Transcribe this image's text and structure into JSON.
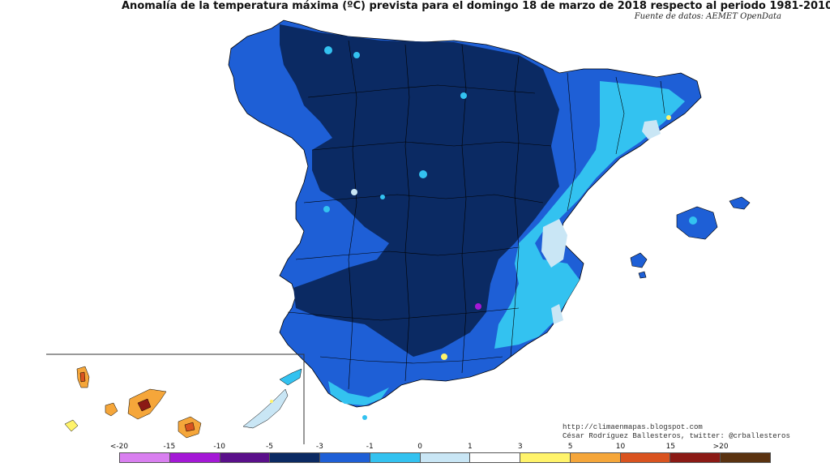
{
  "title": "Anomalía de la temperatura máxima (ºC) prevista para el domingo 18 de marzo de 2018 respecto al periodo 1981-2010",
  "source": "Fuente de datos: AEMET OpenData",
  "credits": {
    "url": "http://climaenmapas.blogspot.com",
    "author": "César Rodríguez Ballesteros, twitter: @crballesteros"
  },
  "legend": {
    "ticks": [
      "<-20",
      "-15",
      "-10",
      "-5",
      "-3",
      "-1",
      "0",
      "1",
      "3",
      "5",
      "10",
      "15",
      ">20"
    ],
    "colors": [
      "#d97ff0",
      "#a418d6",
      "#5a0f8a",
      "#0b2a63",
      "#1e5fd6",
      "#33c2f0",
      "#c9e6f5",
      "#ffffff",
      "#fff36a",
      "#f5a63a",
      "#d9531f",
      "#8b1a15",
      "#5a3210"
    ]
  },
  "map_colors": {
    "dark_blue": "#0b2a63",
    "mid_blue": "#1e5fd6",
    "light_blue": "#33c2f0",
    "pale_blue": "#c9e6f5",
    "border": "#000000"
  }
}
